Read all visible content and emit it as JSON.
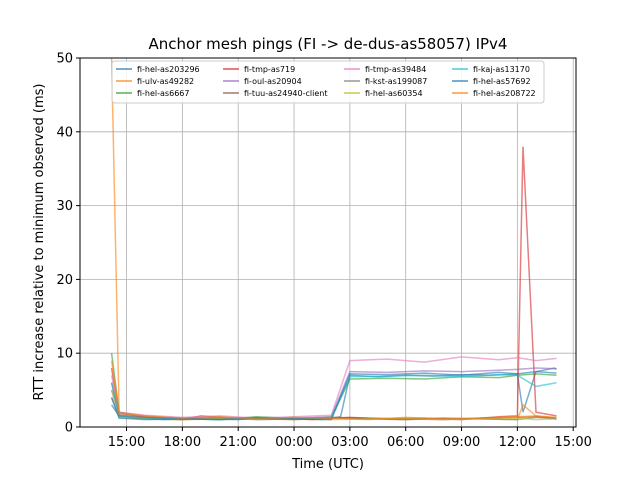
{
  "chart_data": {
    "type": "line",
    "title": "Anchor mesh pings (FI -> de-dus-as58057) IPv4",
    "xlabel": "Time (UTC)",
    "ylabel": "RTT increase relative to minimum observed (ms)",
    "x_unit": "hours, with day 2 continuing past 24",
    "xlim": [
      12.5,
      39.15
    ],
    "ylim": [
      0,
      50
    ],
    "x_ticks": [
      15,
      18,
      21,
      24,
      27,
      30,
      33,
      36,
      39
    ],
    "x_tick_labels": [
      "15:00",
      "18:00",
      "21:00",
      "00:00",
      "03:00",
      "06:00",
      "09:00",
      "12:00",
      "15:00"
    ],
    "y_ticks": [
      0,
      10,
      20,
      30,
      40,
      50
    ],
    "y_tick_labels": [
      "0",
      "10",
      "20",
      "30",
      "40",
      "50"
    ],
    "grid": true,
    "legend_position": "top",
    "series": [
      {
        "name": "fi-hel-as203296",
        "color": "#1f77b4",
        "x": [
          14.2,
          14.6,
          15.5,
          17.0,
          19.0,
          21.0,
          22.5,
          24.0,
          25.5,
          26.5,
          27.0,
          28.5,
          30.0,
          31.5,
          33.0,
          34.5,
          36.0,
          36.3,
          37.0,
          38.0,
          38.1
        ],
        "y": [
          3,
          1.5,
          1.2,
          1.0,
          1.1,
          1.0,
          1.3,
          1.2,
          1.0,
          1.4,
          7.0,
          6.8,
          7.0,
          6.9,
          7.1,
          7.0,
          7.2,
          2.0,
          7.5,
          8.0,
          7.8
        ]
      },
      {
        "name": "fi-ulv-as49282",
        "color": "#ff7f0e",
        "x": [
          14.2,
          14.6,
          16.0,
          18.0,
          20.0,
          22.0,
          24.0,
          26.0,
          28.0,
          30.0,
          32.0,
          34.0,
          36.0,
          36.3,
          37.0,
          38.0,
          38.1
        ],
        "y": [
          50,
          2.0,
          1.5,
          1.0,
          1.2,
          1.1,
          1.0,
          1.3,
          1.1,
          1.0,
          1.2,
          1.1,
          1.0,
          3.0,
          1.5,
          1.2,
          1.0
        ]
      },
      {
        "name": "fi-hel-as6667",
        "color": "#2ca02c",
        "x": [
          14.2,
          14.6,
          16.0,
          18.0,
          20.0,
          22.0,
          24.0,
          26.0,
          27.0,
          29.0,
          31.0,
          33.0,
          35.0,
          36.0,
          37.0,
          38.1
        ],
        "y": [
          10,
          2.0,
          1.3,
          1.2,
          1.0,
          1.4,
          1.1,
          1.2,
          6.5,
          6.6,
          6.5,
          6.8,
          6.7,
          7.0,
          7.2,
          7.0
        ]
      },
      {
        "name": "fi-tmp-as719",
        "color": "#d62728",
        "x": [
          14.2,
          14.6,
          16.0,
          18.0,
          19.0,
          21.0,
          23.0,
          25.0,
          27.0,
          29.0,
          31.0,
          33.0,
          35.0,
          36.0,
          36.3,
          37.0,
          38.1
        ],
        "y": [
          8,
          1.5,
          1.2,
          1.0,
          1.5,
          1.1,
          1.2,
          1.0,
          1.3,
          1.1,
          1.2,
          1.0,
          1.4,
          1.5,
          38,
          2.0,
          1.5
        ]
      },
      {
        "name": "fi-oul-as20904",
        "color": "#9467bd",
        "x": [
          14.2,
          14.6,
          16.0,
          18.0,
          20.0,
          22.0,
          24.0,
          26.0,
          27.0,
          29.0,
          31.0,
          33.0,
          35.0,
          36.0,
          37.0,
          38.1
        ],
        "y": [
          5,
          1.8,
          1.4,
          1.2,
          1.3,
          1.1,
          1.2,
          1.4,
          7.5,
          7.4,
          7.6,
          7.5,
          7.7,
          7.8,
          8.0,
          7.9
        ]
      },
      {
        "name": "fi-tuu-as24940-client",
        "color": "#8c564b",
        "x": [
          14.2,
          14.6,
          16.0,
          18.0,
          20.0,
          22.0,
          24.0,
          26.0,
          28.0,
          30.0,
          32.0,
          34.0,
          36.0,
          37.0,
          38.1
        ],
        "y": [
          6,
          1.6,
          1.3,
          1.1,
          1.2,
          1.0,
          1.1,
          1.3,
          1.2,
          1.1,
          1.0,
          1.2,
          1.3,
          1.4,
          1.2
        ]
      },
      {
        "name": "fi-tmp-as39484",
        "color": "#e377c2",
        "x": [
          14.2,
          14.6,
          16.0,
          18.0,
          20.0,
          22.0,
          24.0,
          26.0,
          27.0,
          29.0,
          31.0,
          33.0,
          35.0,
          36.0,
          37.0,
          38.1
        ],
        "y": [
          7,
          2.0,
          1.6,
          1.3,
          1.5,
          1.2,
          1.4,
          1.6,
          9.0,
          9.2,
          8.8,
          9.5,
          9.1,
          9.4,
          9.0,
          9.3
        ]
      },
      {
        "name": "fi-kst-as199087",
        "color": "#7f7f7f",
        "x": [
          14.2,
          14.6,
          16.0,
          18.0,
          20.0,
          22.0,
          24.0,
          26.0,
          28.0,
          30.0,
          32.0,
          34.0,
          36.0,
          37.0,
          38.1
        ],
        "y": [
          4,
          1.4,
          1.2,
          1.0,
          1.1,
          1.3,
          1.0,
          1.2,
          1.1,
          1.0,
          1.2,
          1.1,
          1.0,
          1.3,
          1.1
        ]
      },
      {
        "name": "fi-hel-as60354",
        "color": "#bcbd22",
        "x": [
          14.2,
          14.6,
          16.0,
          18.0,
          20.0,
          22.0,
          24.0,
          26.0,
          28.0,
          30.0,
          32.0,
          34.0,
          36.0,
          37.0,
          38.1
        ],
        "y": [
          5,
          1.3,
          1.1,
          1.0,
          1.2,
          1.1,
          1.3,
          1.0,
          1.1,
          1.2,
          1.0,
          1.1,
          1.2,
          1.0,
          1.1
        ]
      },
      {
        "name": "fi-kaj-as13170",
        "color": "#17becf",
        "x": [
          14.2,
          14.6,
          16.0,
          18.0,
          20.0,
          22.0,
          24.0,
          26.0,
          27.0,
          29.0,
          31.0,
          33.0,
          35.0,
          36.0,
          37.0,
          38.1
        ],
        "y": [
          6,
          1.5,
          1.2,
          1.1,
          1.0,
          1.2,
          1.1,
          1.3,
          6.8,
          6.9,
          7.0,
          6.8,
          7.1,
          7.0,
          5.5,
          6.0
        ]
      },
      {
        "name": "fi-hel-as57692",
        "color": "#1f77b4",
        "x": [
          14.2,
          14.6,
          16.0,
          18.0,
          20.0,
          22.0,
          24.0,
          26.0,
          27.0,
          29.0,
          31.0,
          33.0,
          35.0,
          36.0,
          37.0,
          38.1
        ],
        "y": [
          4,
          1.2,
          1.0,
          1.1,
          1.0,
          1.2,
          1.1,
          1.0,
          7.2,
          7.1,
          7.3,
          7.0,
          7.4,
          7.2,
          7.5,
          7.3
        ]
      },
      {
        "name": "fi-hel-as208722",
        "color": "#ff7f0e",
        "x": [
          14.2,
          14.6,
          16.0,
          18.0,
          20.0,
          22.0,
          24.0,
          26.0,
          28.0,
          30.0,
          32.0,
          34.0,
          36.0,
          37.0,
          38.1
        ],
        "y": [
          9,
          1.8,
          1.5,
          1.2,
          1.4,
          1.1,
          1.3,
          1.2,
          1.0,
          1.3,
          1.1,
          1.2,
          1.4,
          1.5,
          1.3
        ]
      }
    ]
  }
}
